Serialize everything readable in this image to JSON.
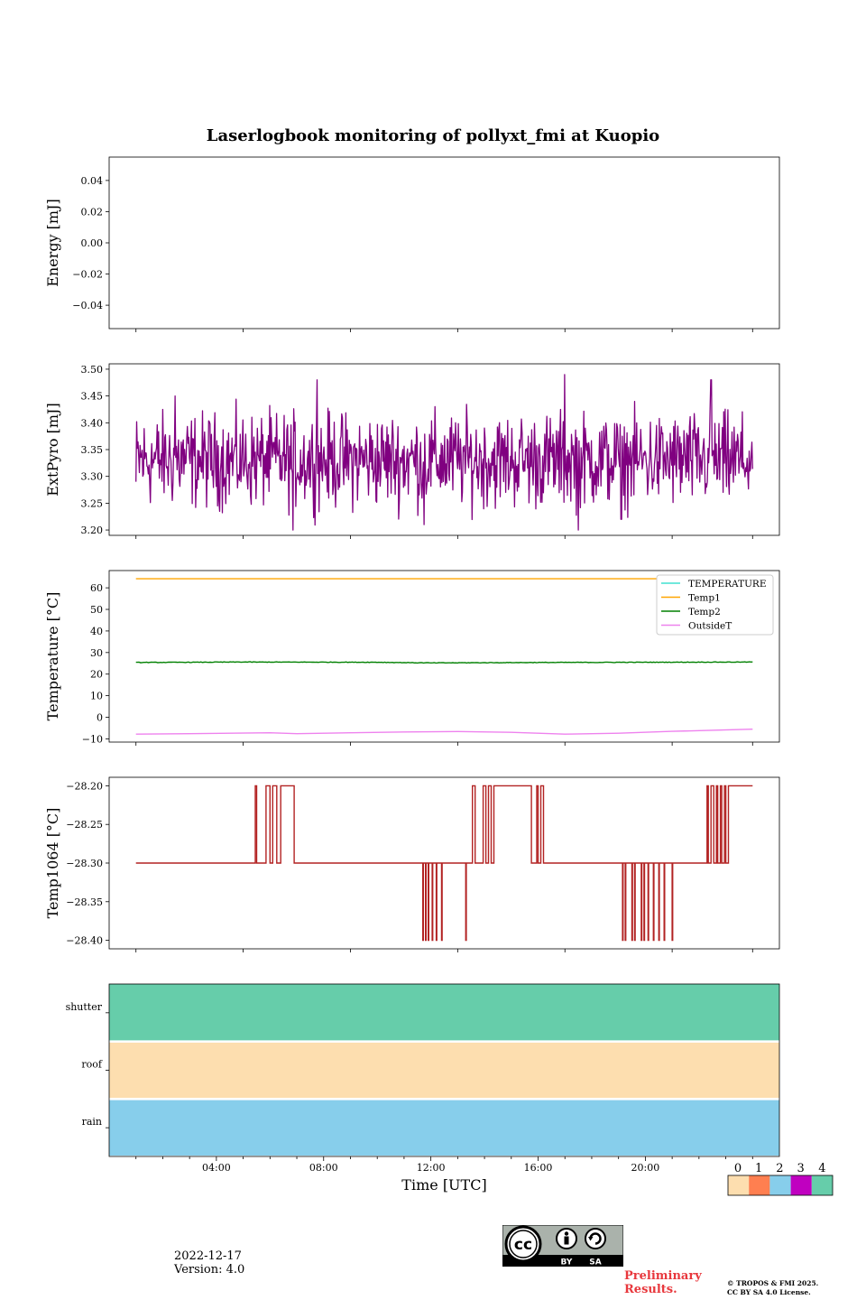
{
  "title": "Laserlogbook monitoring of pollyxt_fmi at Kuopio",
  "footer": {
    "date": "2022-12-17",
    "version": "Version: 4.0",
    "preliminary_line1": "Preliminary",
    "preliminary_line2": "Results.",
    "copyright_line1": "© TROPOS & FMI 2025.",
    "copyright_line2": "CC BY SA 4.0 License.",
    "cc_by": "BY",
    "cc_sa": "SA"
  },
  "colors": {
    "extpyro": "#800080",
    "temperature": "#40e0d0",
    "temp1": "#ffa500",
    "temp2": "#008000",
    "outsideT": "#ee82ee",
    "temp1064": "#b22222",
    "status0": "#fddeaf",
    "status1": "#ff7f50",
    "status2": "#87ceeb",
    "status3": "#c000c0",
    "status4": "#66cdaa"
  },
  "chart_data": [
    {
      "type": "line",
      "id": "energy",
      "ylabel": "Energy [mJ]",
      "ylim": [
        -0.055,
        0.055
      ],
      "yticks": [
        0.04,
        0.02,
        0.0,
        -0.02,
        -0.04
      ],
      "ytick_labels": [
        "0.04",
        "0.02",
        "0.00",
        "−0.02",
        "−0.04"
      ],
      "series": []
    },
    {
      "type": "line",
      "id": "extpyro",
      "ylabel": "ExtPyro [mJ]",
      "ylim": [
        3.19,
        3.51
      ],
      "yticks": [
        3.5,
        3.45,
        3.4,
        3.35,
        3.3,
        3.25,
        3.2
      ],
      "ytick_labels": [
        "3.50",
        "3.45",
        "3.40",
        "3.35",
        "3.30",
        "3.25",
        "3.20"
      ],
      "series": [
        {
          "name": "ExtPyro",
          "x_range": [
            1.0,
            24.0
          ],
          "mean": 3.33,
          "min": 3.2,
          "max": 3.49,
          "spikes": [
            [
              2.45,
              3.45
            ],
            [
              7.75,
              3.48
            ],
            [
              6.85,
              3.2
            ],
            [
              11.75,
              3.21
            ],
            [
              17.0,
              3.49
            ],
            [
              17.5,
              3.2
            ],
            [
              22.45,
              3.48
            ],
            [
              19.1,
              3.22
            ]
          ]
        }
      ]
    },
    {
      "type": "line",
      "id": "temperature",
      "ylabel": "Temperature [°C]",
      "ylim": [
        -11.5,
        68
      ],
      "yticks": [
        60,
        50,
        40,
        30,
        20,
        10,
        0,
        -10
      ],
      "ytick_labels": [
        "60",
        "50",
        "40",
        "30",
        "20",
        "10",
        "0",
        "−10"
      ],
      "legend_position": "top-right",
      "series": [
        {
          "name": "TEMPERATURE",
          "x": [],
          "y": []
        },
        {
          "name": "Temp1",
          "x": [
            1,
            24
          ],
          "y": [
            64.2,
            64.2
          ]
        },
        {
          "name": "Temp2",
          "x": [
            1,
            5,
            10,
            12,
            16,
            20,
            24
          ],
          "y": [
            25.4,
            25.6,
            25.5,
            25.2,
            25.4,
            25.5,
            25.6
          ]
        },
        {
          "name": "OutsideT",
          "x": [
            1,
            3,
            6,
            7,
            9,
            11,
            13,
            15,
            17,
            19,
            21,
            24
          ],
          "y": [
            -7.8,
            -7.6,
            -7.2,
            -7.6,
            -7.2,
            -6.8,
            -6.6,
            -7.0,
            -7.8,
            -7.4,
            -6.5,
            -5.5
          ]
        }
      ]
    },
    {
      "type": "line",
      "id": "temp1064",
      "ylabel": "Temp1064 [°C]",
      "ylim": [
        -28.411,
        -28.189
      ],
      "yticks": [
        -28.2,
        -28.25,
        -28.3,
        -28.35,
        -28.4
      ],
      "ytick_labels": [
        "−28.20",
        "−28.25",
        "−28.30",
        "−28.35",
        "−28.40"
      ],
      "series": [
        {
          "name": "Temp1064",
          "baseline": -28.3,
          "high_blocks": [
            [
              5.45,
              5.5
            ],
            [
              5.85,
              6.0
            ],
            [
              6.1,
              6.25
            ],
            [
              6.4,
              6.9
            ],
            [
              13.55,
              13.65
            ],
            [
              13.95,
              14.05
            ],
            [
              14.15,
              14.25
            ],
            [
              14.35,
              15.75
            ],
            [
              15.95,
              16.0
            ],
            [
              16.1,
              16.2
            ],
            [
              22.3,
              22.35
            ],
            [
              22.45,
              22.55
            ],
            [
              22.65,
              22.7
            ],
            [
              22.8,
              22.85
            ],
            [
              22.95,
              23.0
            ],
            [
              23.1,
              24.0
            ]
          ],
          "low_spikes": [
            11.7,
            11.8,
            11.9,
            12.05,
            12.2,
            12.4,
            13.3,
            19.15,
            19.25,
            19.5,
            19.6,
            19.85,
            19.95,
            20.1,
            20.3,
            20.5,
            20.7,
            21.0
          ]
        }
      ]
    },
    {
      "type": "heatmap",
      "id": "status",
      "rows": [
        "shutter",
        "roof",
        "rain"
      ],
      "row_values": [
        4,
        0,
        2
      ],
      "x_range": [
        0,
        25.0
      ],
      "xlabel": "Time [UTC]",
      "xticks": [
        4,
        8,
        12,
        16,
        20
      ],
      "xtick_labels": [
        "04:00",
        "08:00",
        "12:00",
        "16:00",
        "20:00"
      ],
      "colorbar": {
        "values": [
          0,
          1,
          2,
          3,
          4
        ],
        "labels": [
          "0",
          "1",
          "2",
          "3",
          "4"
        ]
      }
    }
  ]
}
